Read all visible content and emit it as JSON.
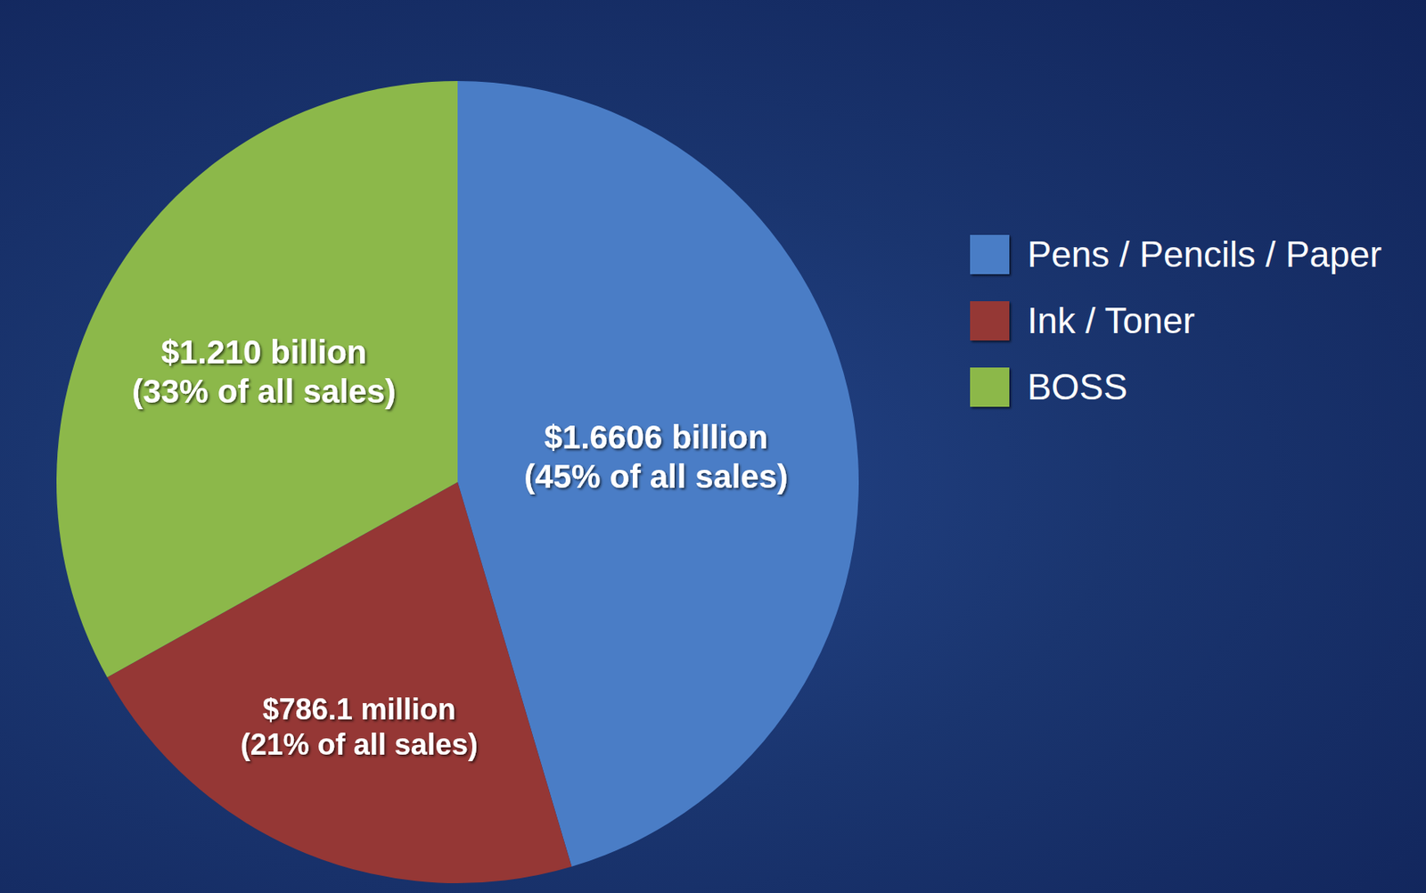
{
  "chart_data": {
    "type": "pie",
    "categories": [
      "Pens / Pencils / Paper",
      "Ink / Toner",
      "BOSS"
    ],
    "values": [
      1660600000,
      786100000,
      1210000000
    ],
    "value_labels": [
      "$1.6606 billion",
      "$786.1 million",
      "$1.210 billion"
    ],
    "percents": [
      45,
      21,
      33
    ],
    "percent_labels": [
      "(45% of all sales)",
      "(21% of all sales)",
      "(33% of all sales)"
    ],
    "colors": [
      "#4a7dc6",
      "#953735",
      "#8cb84a"
    ],
    "data_labels": true,
    "legend": "right"
  }
}
